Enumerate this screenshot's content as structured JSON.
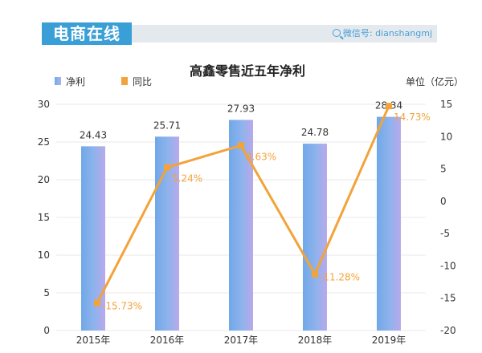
{
  "header": {
    "brand": "电商在线",
    "wechat": "微信号: dianshangmj"
  },
  "chart_data": {
    "type": "bar",
    "title": "高鑫零售近五年净利",
    "unit_label": "单位（亿元）",
    "categories": [
      "2015年",
      "2016年",
      "2017年",
      "2018年",
      "2019年"
    ],
    "series": [
      {
        "name": "净利",
        "type": "bar",
        "axis": "left",
        "values": [
          24.43,
          25.71,
          27.93,
          24.78,
          28.34
        ],
        "labels": [
          "24.43",
          "25.71",
          "27.93",
          "24.78",
          "28.34"
        ],
        "color": "#7ea6e6"
      },
      {
        "name": "同比",
        "type": "line",
        "axis": "right",
        "values": [
          -15.73,
          5.24,
          8.63,
          -11.28,
          14.73
        ],
        "labels": [
          "-15.73%",
          "5.24%",
          "8.63%",
          "-11.28%",
          "14.73%"
        ],
        "color": "#f2a33a"
      }
    ],
    "y_left": {
      "min": 0,
      "max": 30,
      "ticks": [
        0,
        5,
        10,
        15,
        20,
        25,
        30
      ]
    },
    "y_right": {
      "min": -20,
      "max": 15,
      "ticks": [
        -20,
        -15,
        -10,
        -5,
        0,
        5,
        10,
        15
      ]
    },
    "grid": true,
    "legend_position": "top-left"
  }
}
